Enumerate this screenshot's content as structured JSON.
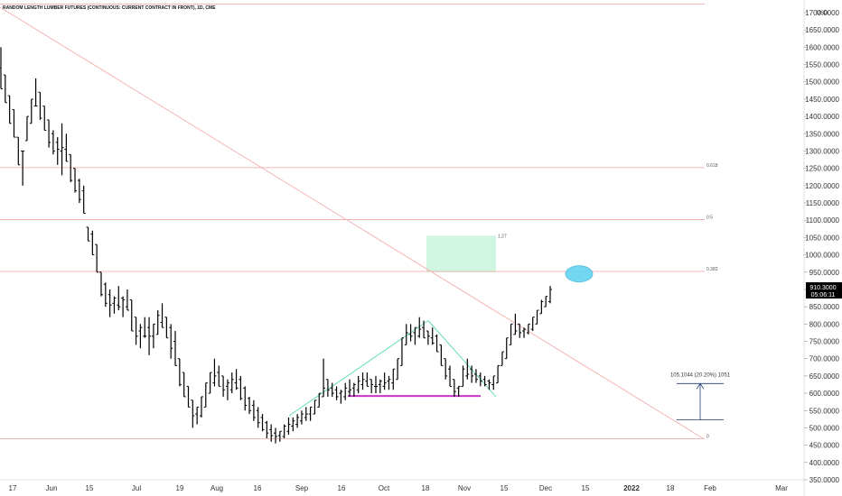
{
  "chart_data": {
    "type": "bar",
    "title": "RANDOM LENGTH LUMBER FUTURES (CONTINUOUS: CURRENT CONTRACT IN FRONT), 1D, CME",
    "currency": "USD",
    "y_ticks": [
      1700,
      1650,
      1600,
      1550,
      1500,
      1450,
      1400,
      1350,
      1300,
      1250,
      1200,
      1150,
      1100,
      1050,
      1000,
      950,
      900,
      850,
      800,
      750,
      700,
      650,
      600,
      550,
      500,
      450,
      400,
      350
    ],
    "y_tick_labels": [
      "1700.0000",
      "1650.0000",
      "1600.0000",
      "1550.0000",
      "1500.0000",
      "1450.0000",
      "1400.0000",
      "1350.0000",
      "1300.0000",
      "1250.0000",
      "1200.0000",
      "1150.0000",
      "1100.0000",
      "1050.0000",
      "1000.0000",
      "950.0000",
      "900.0000",
      "850.0000",
      "800.0000",
      "750.0000",
      "700.0000",
      "650.0000",
      "600.0000",
      "550.0000",
      "500.0000",
      "450.0000",
      "400.0000",
      "350.0000"
    ],
    "ylim": [
      340,
      1725
    ],
    "x_ticks": [
      {
        "label": "17",
        "bold": false
      },
      {
        "label": "Jun",
        "bold": false
      },
      {
        "label": "15",
        "bold": false
      },
      {
        "label": "Jul",
        "bold": false
      },
      {
        "label": "19",
        "bold": false
      },
      {
        "label": "Aug",
        "bold": false
      },
      {
        "label": "16",
        "bold": false
      },
      {
        "label": "Sep",
        "bold": false
      },
      {
        "label": "16",
        "bold": false
      },
      {
        "label": "Oct",
        "bold": false
      },
      {
        "label": "18",
        "bold": false
      },
      {
        "label": "Nov",
        "bold": false
      },
      {
        "label": "15",
        "bold": false
      },
      {
        "label": "Dec",
        "bold": false
      },
      {
        "label": "15",
        "bold": false
      },
      {
        "label": "2022",
        "bold": true
      },
      {
        "label": "18",
        "bold": false
      },
      {
        "label": "Feb",
        "bold": false
      },
      {
        "label": "Mar",
        "bold": false
      }
    ],
    "ohlc_bars": [
      {
        "h": 1600,
        "l": 1480
      },
      {
        "h": 1520,
        "l": 1440
      },
      {
        "h": 1460,
        "l": 1380
      },
      {
        "h": 1420,
        "l": 1340
      },
      {
        "h": 1340,
        "l": 1260
      },
      {
        "h": 1300,
        "l": 1200
      },
      {
        "h": 1400,
        "l": 1330
      },
      {
        "h": 1450,
        "l": 1380
      },
      {
        "h": 1510,
        "l": 1430
      },
      {
        "h": 1470,
        "l": 1390
      },
      {
        "h": 1430,
        "l": 1360
      },
      {
        "h": 1390,
        "l": 1310
      },
      {
        "h": 1360,
        "l": 1290
      },
      {
        "h": 1340,
        "l": 1260
      },
      {
        "h": 1380,
        "l": 1230
      },
      {
        "h": 1350,
        "l": 1270
      },
      {
        "h": 1290,
        "l": 1210
      },
      {
        "h": 1250,
        "l": 1180
      },
      {
        "h": 1220,
        "l": 1150
      },
      {
        "h": 1200,
        "l": 1120
      },
      {
        "h": 1080,
        "l": 1040
      },
      {
        "h": 1070,
        "l": 1000
      },
      {
        "h": 1030,
        "l": 950
      },
      {
        "h": 950,
        "l": 880
      },
      {
        "h": 920,
        "l": 850
      },
      {
        "h": 900,
        "l": 820
      },
      {
        "h": 880,
        "l": 830
      },
      {
        "h": 910,
        "l": 840
      },
      {
        "h": 880,
        "l": 820
      },
      {
        "h": 900,
        "l": 840
      },
      {
        "h": 870,
        "l": 780
      },
      {
        "h": 820,
        "l": 740
      },
      {
        "h": 800,
        "l": 730
      },
      {
        "h": 820,
        "l": 760
      },
      {
        "h": 820,
        "l": 710
      },
      {
        "h": 800,
        "l": 730
      },
      {
        "h": 840,
        "l": 770
      },
      {
        "h": 860,
        "l": 790
      },
      {
        "h": 820,
        "l": 760
      },
      {
        "h": 800,
        "l": 700
      },
      {
        "h": 780,
        "l": 680
      },
      {
        "h": 700,
        "l": 620
      },
      {
        "h": 660,
        "l": 590
      },
      {
        "h": 620,
        "l": 560
      },
      {
        "h": 580,
        "l": 500
      },
      {
        "h": 560,
        "l": 510
      },
      {
        "h": 590,
        "l": 530
      },
      {
        "h": 630,
        "l": 560
      },
      {
        "h": 660,
        "l": 600
      },
      {
        "h": 700,
        "l": 620
      },
      {
        "h": 680,
        "l": 620
      },
      {
        "h": 650,
        "l": 590
      },
      {
        "h": 640,
        "l": 580
      },
      {
        "h": 660,
        "l": 600
      },
      {
        "h": 670,
        "l": 610
      },
      {
        "h": 650,
        "l": 580
      },
      {
        "h": 620,
        "l": 550
      },
      {
        "h": 590,
        "l": 540
      },
      {
        "h": 580,
        "l": 520
      },
      {
        "h": 560,
        "l": 500
      },
      {
        "h": 540,
        "l": 490
      },
      {
        "h": 520,
        "l": 470
      },
      {
        "h": 510,
        "l": 460
      },
      {
        "h": 500,
        "l": 455
      },
      {
        "h": 490,
        "l": 460
      },
      {
        "h": 510,
        "l": 470
      },
      {
        "h": 530,
        "l": 480
      },
      {
        "h": 530,
        "l": 490
      },
      {
        "h": 540,
        "l": 500
      },
      {
        "h": 550,
        "l": 510
      },
      {
        "h": 560,
        "l": 520
      },
      {
        "h": 560,
        "l": 520
      },
      {
        "h": 580,
        "l": 540
      },
      {
        "h": 600,
        "l": 560
      },
      {
        "h": 700,
        "l": 590
      },
      {
        "h": 640,
        "l": 590
      },
      {
        "h": 630,
        "l": 590
      },
      {
        "h": 620,
        "l": 580
      },
      {
        "h": 610,
        "l": 570
      },
      {
        "h": 630,
        "l": 580
      },
      {
        "h": 640,
        "l": 590
      },
      {
        "h": 630,
        "l": 590
      },
      {
        "h": 650,
        "l": 600
      },
      {
        "h": 660,
        "l": 610
      },
      {
        "h": 660,
        "l": 620
      },
      {
        "h": 640,
        "l": 600
      },
      {
        "h": 650,
        "l": 600
      },
      {
        "h": 640,
        "l": 600
      },
      {
        "h": 660,
        "l": 610
      },
      {
        "h": 650,
        "l": 610
      },
      {
        "h": 670,
        "l": 610
      },
      {
        "h": 700,
        "l": 640
      },
      {
        "h": 760,
        "l": 680
      },
      {
        "h": 800,
        "l": 740
      },
      {
        "h": 800,
        "l": 750
      },
      {
        "h": 790,
        "l": 740
      },
      {
        "h": 820,
        "l": 760
      },
      {
        "h": 810,
        "l": 760
      },
      {
        "h": 780,
        "l": 740
      },
      {
        "h": 790,
        "l": 740
      },
      {
        "h": 770,
        "l": 720
      },
      {
        "h": 740,
        "l": 680
      },
      {
        "h": 700,
        "l": 640
      },
      {
        "h": 680,
        "l": 620
      },
      {
        "h": 640,
        "l": 590
      },
      {
        "h": 620,
        "l": 590
      },
      {
        "h": 680,
        "l": 620
      },
      {
        "h": 700,
        "l": 640
      },
      {
        "h": 680,
        "l": 630
      },
      {
        "h": 670,
        "l": 630
      },
      {
        "h": 660,
        "l": 620
      },
      {
        "h": 650,
        "l": 620
      },
      {
        "h": 640,
        "l": 610
      },
      {
        "h": 650,
        "l": 610
      },
      {
        "h": 680,
        "l": 630
      },
      {
        "h": 720,
        "l": 680
      },
      {
        "h": 760,
        "l": 700
      },
      {
        "h": 800,
        "l": 740
      },
      {
        "h": 830,
        "l": 770
      },
      {
        "h": 800,
        "l": 760
      },
      {
        "h": 790,
        "l": 760
      },
      {
        "h": 800,
        "l": 770
      },
      {
        "h": 820,
        "l": 780
      },
      {
        "h": 840,
        "l": 800
      },
      {
        "h": 870,
        "l": 830
      },
      {
        "h": 880,
        "l": 850
      },
      {
        "h": 910,
        "l": 860
      }
    ],
    "fib_levels": [
      {
        "label": "0.618",
        "value": 1252
      },
      {
        "label": "0.5",
        "value": 1102
      },
      {
        "label": "0.382",
        "value": 952
      },
      {
        "label": "0",
        "value": 469
      }
    ],
    "top_level": 1725,
    "current_price": "910.3000",
    "countdown": "05:06:11",
    "measure_label": "105.1044 (20.20%) 1051",
    "target_box_label": "1.27",
    "colors": {
      "bars": "#000000",
      "fib_line": "#f0a0a0",
      "trend_line": "#f5b5b5",
      "uptrend": "#66ddbb",
      "downtrend": "#66ddbb",
      "neckline": "#cc33cc",
      "target_box": "#c8f5dc",
      "ellipse": "#5ad2f0",
      "measure": "#1e3a78",
      "price_label_bg": "#000000"
    }
  }
}
